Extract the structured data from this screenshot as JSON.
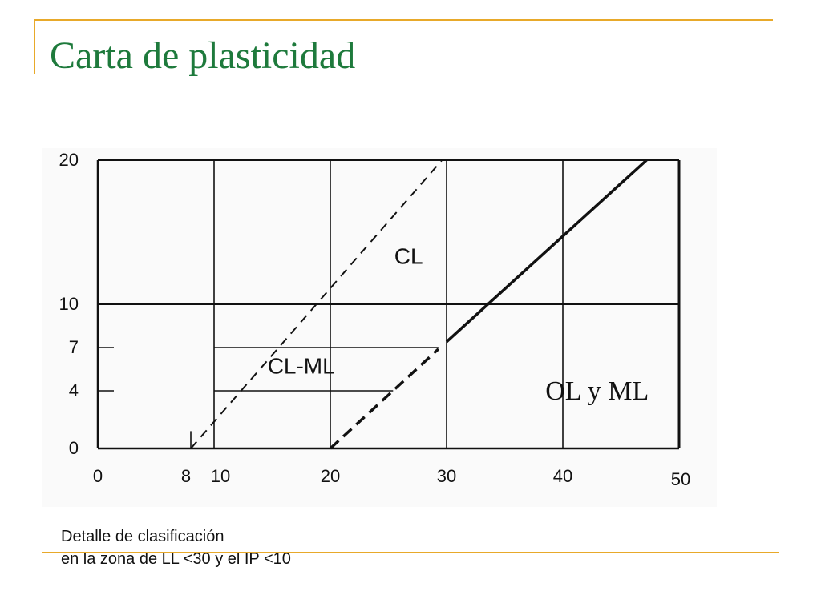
{
  "slide": {
    "title": "Carta de plasticidad",
    "caption_line1": "Detalle de clasificación",
    "caption_line2": "en la zona de LL <30 y el IP <10"
  },
  "colors": {
    "title": "#1e7a3c",
    "accent": "#e8a92a",
    "ink": "#111111"
  },
  "chart_data": {
    "type": "line",
    "grid": true,
    "xlim": [
      0,
      50
    ],
    "ylim": [
      0,
      20
    ],
    "x_ticks": [
      {
        "value": 0,
        "label": "0"
      },
      {
        "value": 8,
        "label": "8"
      },
      {
        "value": 10,
        "label": "10"
      },
      {
        "value": 20,
        "label": "20"
      },
      {
        "value": 30,
        "label": "30"
      },
      {
        "value": 40,
        "label": "40"
      },
      {
        "value": 50,
        "label": "50"
      }
    ],
    "y_ticks": [
      {
        "value": 0,
        "label": "0"
      },
      {
        "value": 4,
        "label": "4"
      },
      {
        "value": 7,
        "label": "7"
      },
      {
        "value": 10,
        "label": "10"
      },
      {
        "value": 20,
        "label": "20"
      }
    ],
    "x_grid": [
      10,
      20,
      30,
      40
    ],
    "y_grid": [
      10
    ],
    "series": [
      {
        "style": "dashed-thin",
        "points": [
          [
            8,
            0
          ],
          [
            29.6,
            20
          ]
        ]
      },
      {
        "style": "dashed-thick",
        "points": [
          [
            20,
            0
          ],
          [
            29.3,
            6.9
          ]
        ]
      },
      {
        "style": "solid",
        "points": [
          [
            30,
            7.4
          ],
          [
            47.2,
            20
          ]
        ]
      }
    ],
    "cl_ml_band": {
      "x_left": 10,
      "y_bottom": 4,
      "y_top": 7,
      "x_top_right": 29.3,
      "x_bottom_right": 25.4
    },
    "region_labels": [
      {
        "text": "CL",
        "x": 25.5,
        "y": 12.8
      },
      {
        "text": "CL-ML",
        "x": 14.6,
        "y": 5.2
      },
      {
        "text": "OL y ML",
        "x": 38.5,
        "y": 3.4
      }
    ]
  }
}
